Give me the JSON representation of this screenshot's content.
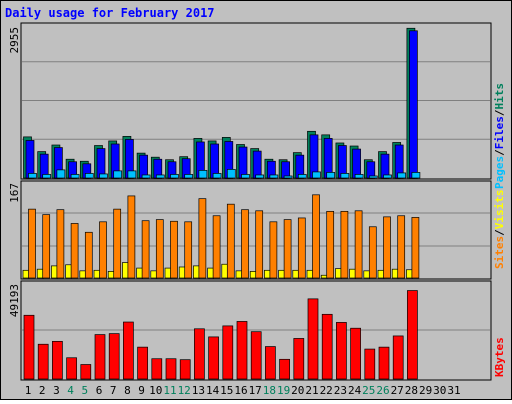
{
  "title": "Daily usage for February 2017",
  "colors": {
    "hits": "#00805c",
    "files": "#0000ff",
    "pages": "#00c0ff",
    "visits": "#ffff00",
    "sites": "#ff8000",
    "kbytes": "#ff0000",
    "title": "#0000ff",
    "weekend_label": "#00805c",
    "weekday_label": "#000000",
    "panel_bg": "#c0c0c0",
    "grid": "#808080"
  },
  "y_axis_labels": {
    "hits_panel_max": "2955",
    "visits_panel_max": "167",
    "kbytes_panel_max": "49193"
  },
  "right_labels": {
    "pages": "Pages",
    "files": "Files",
    "hits": "Hits",
    "visits": "Visits",
    "sites": "Sites",
    "kbytes": "KBytes",
    "sep": "/"
  },
  "chart_data": {
    "type": "bar",
    "title": "Daily usage for February 2017",
    "categories": [
      "1",
      "2",
      "3",
      "4",
      "5",
      "6",
      "7",
      "8",
      "9",
      "10",
      "11",
      "12",
      "13",
      "14",
      "15",
      "16",
      "17",
      "18",
      "19",
      "20",
      "21",
      "22",
      "23",
      "24",
      "25",
      "26",
      "27",
      "28",
      "29",
      "30",
      "31"
    ],
    "weekend_days": [
      "4",
      "5",
      "11",
      "12",
      "18",
      "19",
      "25",
      "26"
    ],
    "panels": [
      {
        "name": "hits_files_pages",
        "ymax": 2955,
        "series": [
          {
            "name": "Hits",
            "values": [
              810,
              520,
              650,
              370,
              330,
              640,
              730,
              820,
              490,
              410,
              360,
              420,
              780,
              730,
              800,
              660,
              580,
              370,
              360,
              500,
              920,
              850,
              690,
              630,
              360,
              520,
              700,
              2950,
              0,
              0,
              0
            ]
          },
          {
            "name": "Files",
            "values": [
              740,
              470,
              600,
              320,
              280,
              580,
              670,
              760,
              450,
              370,
              320,
              380,
              710,
              670,
              720,
              610,
              530,
              330,
              320,
              450,
              850,
              780,
              640,
              570,
              320,
              470,
              650,
              2900,
              0,
              0,
              0
            ]
          },
          {
            "name": "Pages",
            "values": [
              90,
              70,
              160,
              70,
              90,
              80,
              140,
              140,
              60,
              60,
              70,
              70,
              150,
              90,
              170,
              70,
              60,
              60,
              40,
              70,
              120,
              110,
              90,
              70,
              40,
              60,
              100,
              110,
              0,
              0,
              0
            ]
          }
        ]
      },
      {
        "name": "visits_sites",
        "ymax": 167,
        "series": [
          {
            "name": "Visits",
            "values": [
              14,
              16,
              22,
              24,
              13,
              14,
              12,
              28,
              18,
              13,
              18,
              20,
              22,
              18,
              25,
              13,
              12,
              14,
              14,
              14,
              14,
              5,
              17,
              16,
              13,
              14,
              16,
              15,
              0,
              0,
              0
            ]
          },
          {
            "name": "Sites",
            "values": [
              125,
              115,
              124,
              99,
              83,
              102,
              125,
              149,
              104,
              106,
              103,
              102,
              144,
              113,
              134,
              124,
              122,
              102,
              106,
              109,
              151,
              121,
              121,
              122,
              93,
              111,
              113,
              110,
              0,
              0,
              0
            ]
          }
        ]
      },
      {
        "name": "kbytes",
        "ymax": 49193,
        "series": [
          {
            "name": "KBytes",
            "values": [
              33000,
              18000,
              19500,
              11000,
              7500,
              23000,
              23500,
              29500,
              16500,
              10500,
              10500,
              10000,
              26000,
              21800,
              27500,
              29800,
              24500,
              16800,
              10200,
              21000,
              41500,
              33500,
              29300,
              26300,
              15500,
              16500,
              22300,
              45800,
              0,
              0,
              0
            ]
          }
        ]
      }
    ]
  }
}
